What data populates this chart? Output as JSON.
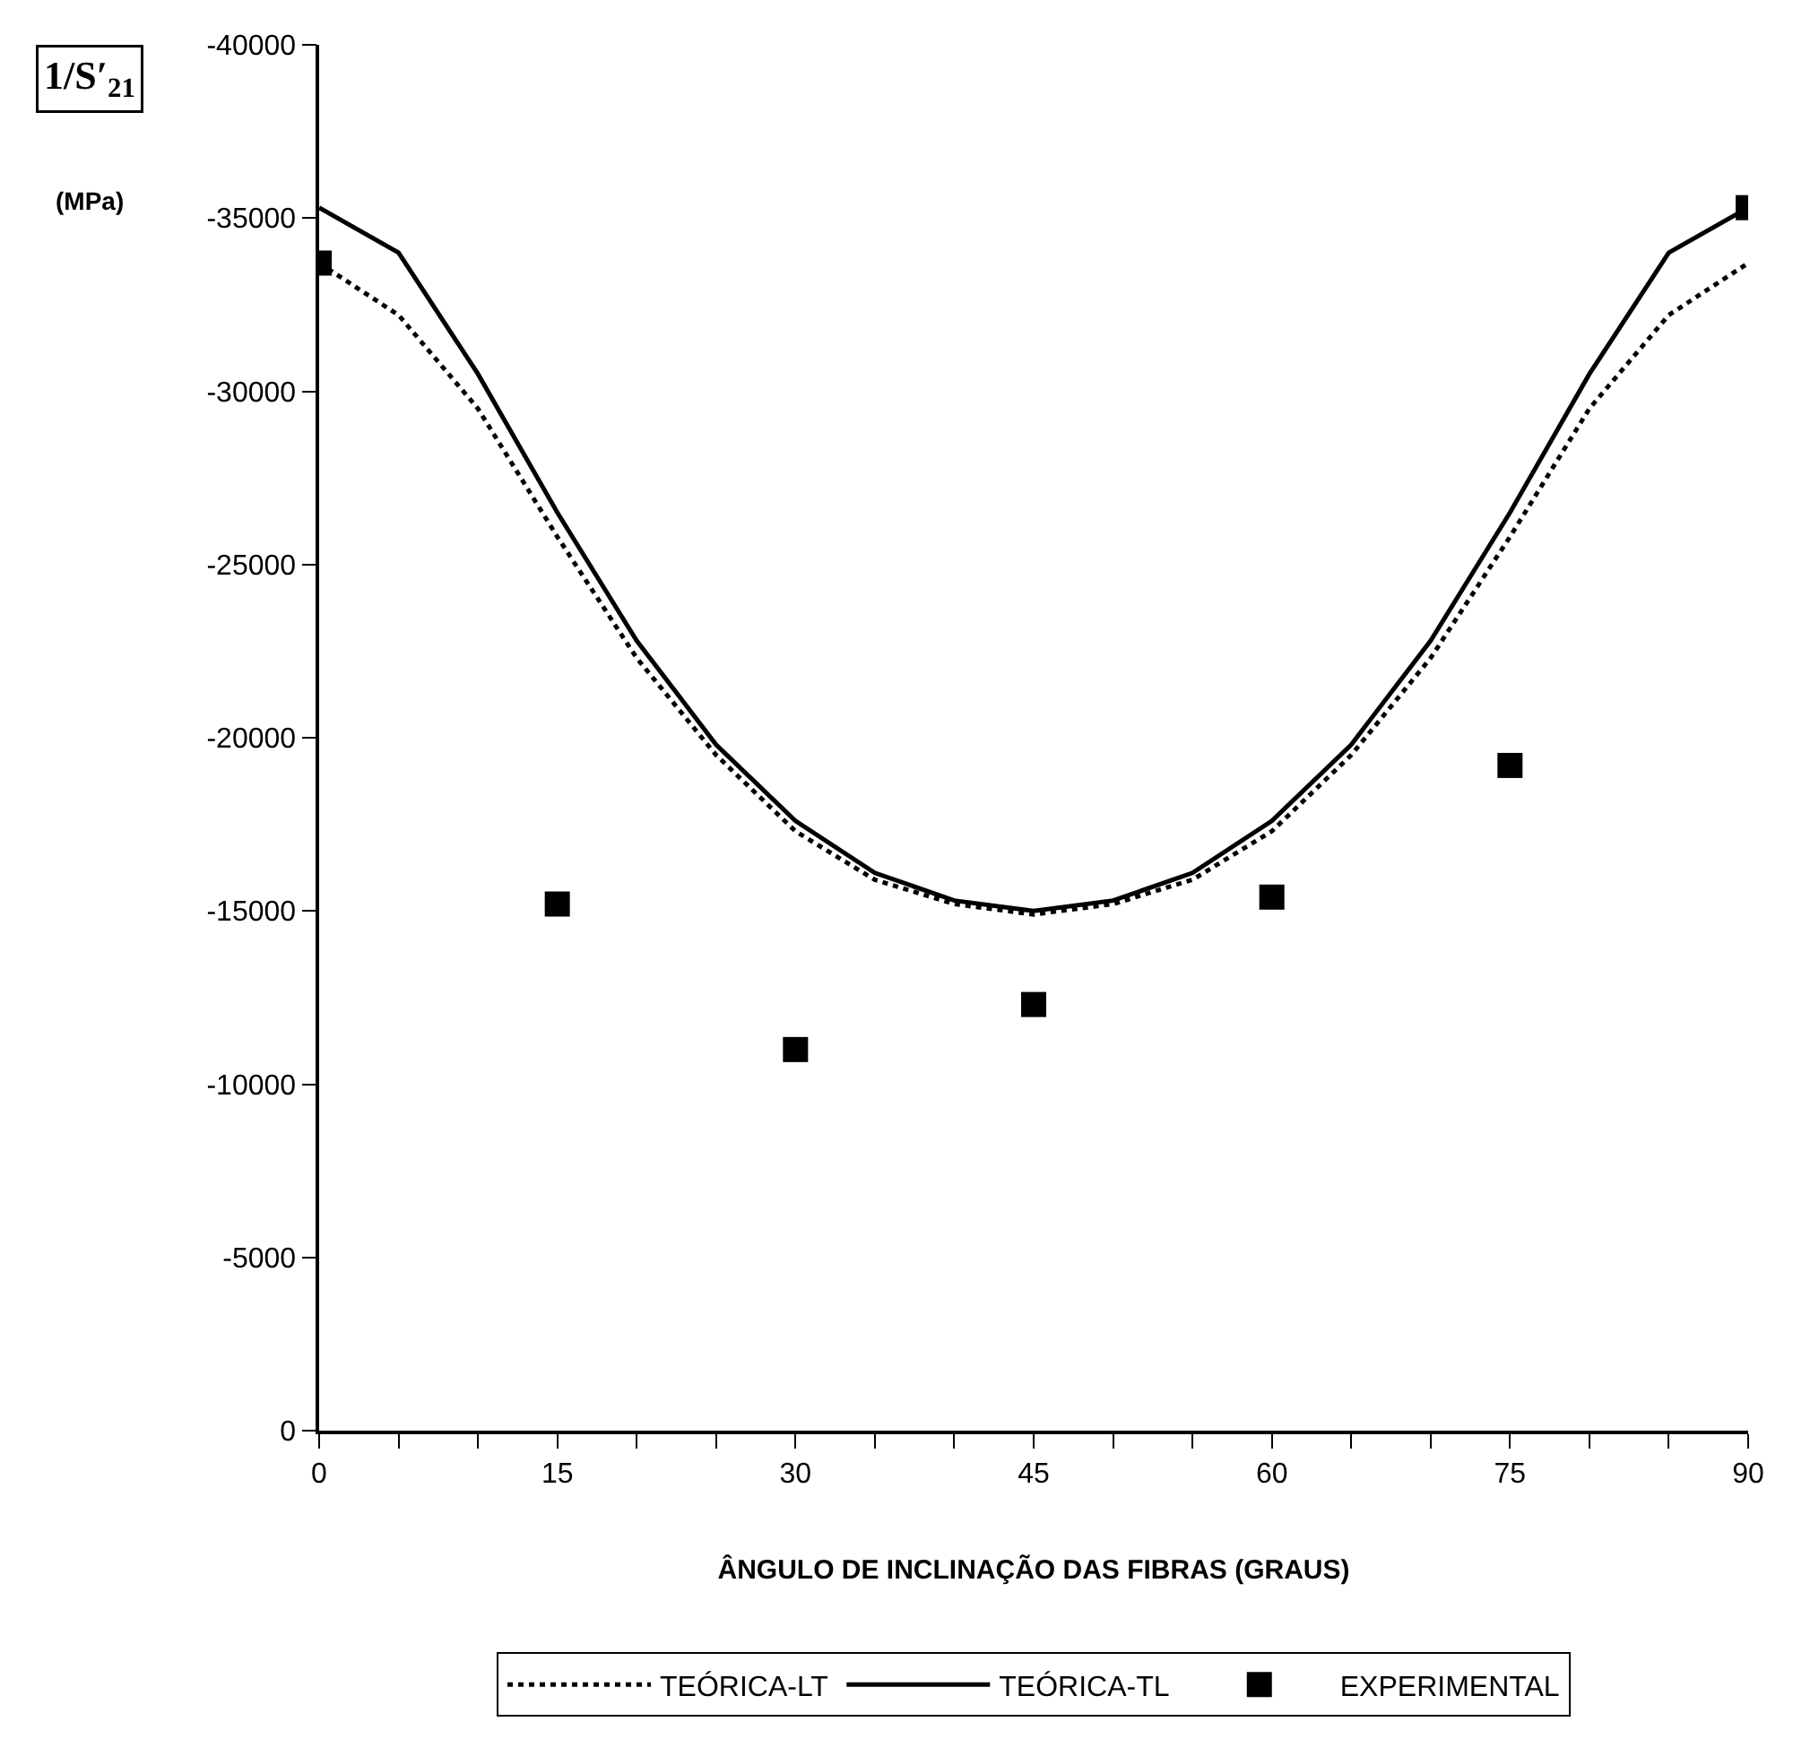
{
  "chart_data": {
    "type": "line",
    "xlabel": "ÂNGULO DE INCLINAÇÃO DAS FIBRAS (GRAUS)",
    "ylabel": "1/S′$_{21}$",
    "annotations": [
      "(MPa)"
    ],
    "x": [
      0,
      5,
      10,
      15,
      20,
      25,
      30,
      35,
      40,
      45,
      50,
      55,
      60,
      65,
      70,
      75,
      80,
      85,
      90
    ],
    "series": [
      {
        "name": "TEÓRICA-LT",
        "color": "#000000",
        "line_style": "dotted",
        "marker": "none",
        "values": [
          -33700,
          -32200,
          -29500,
          -25800,
          -22300,
          -19500,
          -17300,
          -15900,
          -15200,
          -14900,
          -15200,
          -15900,
          -17300,
          -19500,
          -22300,
          -25800,
          -29500,
          -32200,
          -33700
        ]
      },
      {
        "name": "TEÓRICA-TL",
        "color": "#000000",
        "line_style": "solid",
        "marker": "none",
        "values": [
          -35300,
          -34000,
          -30500,
          -26500,
          -22800,
          -19800,
          -17600,
          -16100,
          -15300,
          -15000,
          -15300,
          -16100,
          -17600,
          -19800,
          -22800,
          -26500,
          -30500,
          -34000,
          -35300
        ]
      },
      {
        "name": "EXPERIMENTAL",
        "type": "scatter",
        "color": "#000000",
        "marker": "square",
        "x": [
          0,
          15,
          30,
          45,
          60,
          75,
          90
        ],
        "values": [
          -33700,
          -15200,
          -11000,
          -12300,
          -15400,
          -19200,
          -35300
        ]
      }
    ],
    "xlim": [
      0,
      90
    ],
    "xticks": [
      0,
      {
        "value": 5,
        "label": null
      },
      {
        "value": 10,
        "label": null
      },
      15,
      {
        "value": 20,
        "label": null
      },
      {
        "value": 25,
        "label": null
      },
      30,
      {
        "value": 35,
        "label": null
      },
      {
        "value": 40,
        "label": null
      },
      45,
      {
        "value": 50,
        "label": null
      },
      {
        "value": 55,
        "label": null
      },
      60,
      {
        "value": 65,
        "label": null
      },
      {
        "value": 70,
        "label": null
      },
      75,
      {
        "value": 80,
        "label": null
      },
      {
        "value": 85,
        "label": null
      },
      90
    ],
    "ylim": [
      0,
      -40000
    ],
    "yticks": [
      0,
      -5000,
      -10000,
      -15000,
      -20000,
      -25000,
      -30000,
      -35000,
      -40000
    ],
    "legend": "bottom"
  }
}
